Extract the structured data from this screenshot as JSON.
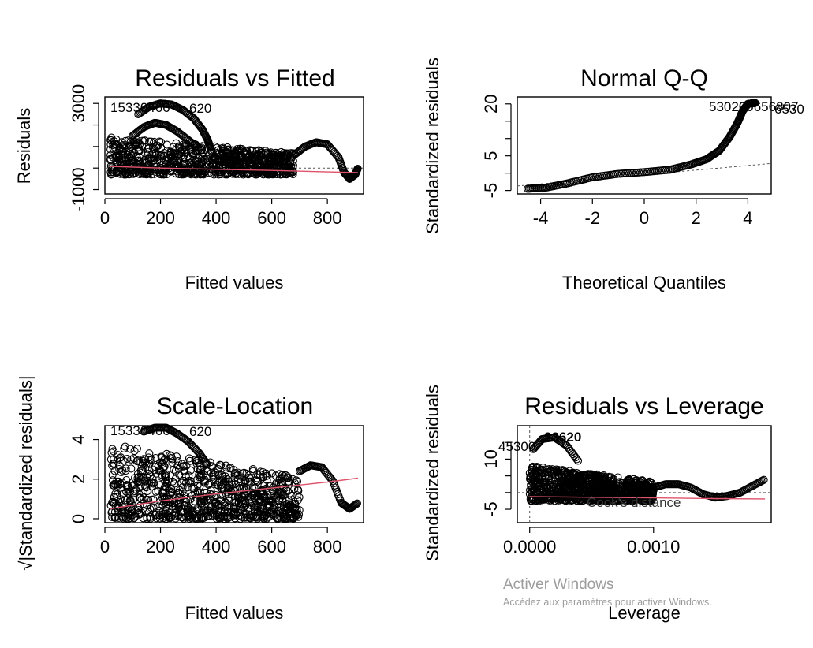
{
  "window": {
    "watermark_title": "Activer Windows",
    "watermark_sub": "Accédez aux paramètres pour activer Windows."
  },
  "colors": {
    "points": "#000000",
    "smooth": "#DF536B",
    "reference": "#777777"
  },
  "chart_data": [
    {
      "type": "scatter",
      "title": "Residuals vs Fitted",
      "xlabel": "Fitted values",
      "ylabel": "Residuals",
      "xlim": [
        0,
        930
      ],
      "ylim": [
        -1200,
        3300
      ],
      "xticks": [
        0,
        200,
        400,
        600,
        800
      ],
      "yticks": [
        -1000,
        0,
        1000,
        2000,
        3000
      ],
      "ytick_labels": [
        "-1000",
        "",
        "",
        "",
        "3000"
      ],
      "reference_line": {
        "y": 0
      },
      "smooth": {
        "x": [
          20,
          200,
          400,
          600,
          800,
          910
        ],
        "y": [
          80,
          0,
          -60,
          -110,
          -180,
          -210
        ]
      },
      "point_labels": [
        "1533",
        "3350",
        "4620"
      ],
      "point_label_text": "15330466",
      "point_label_text2": "620",
      "curves": [
        {
          "x": [
            120,
            160,
            200,
            240,
            280,
            320,
            350,
            370,
            380
          ],
          "y": [
            2500,
            2850,
            3000,
            2950,
            2700,
            2300,
            1800,
            1300,
            900
          ]
        },
        {
          "x": [
            100,
            140,
            180,
            220,
            260,
            300,
            340
          ],
          "y": [
            1500,
            1900,
            2100,
            2000,
            1700,
            1300,
            900
          ]
        },
        {
          "x": [
            680,
            720,
            760,
            800,
            840,
            860,
            880,
            900,
            910
          ],
          "y": [
            600,
            1000,
            1200,
            1100,
            500,
            -200,
            -500,
            -300,
            0
          ]
        }
      ],
      "cloud": {
        "x_range": [
          20,
          680
        ],
        "y_lo": -300,
        "y_hi": 1500
      }
    },
    {
      "type": "scatter",
      "title": "Normal Q-Q",
      "xlabel": "Theoretical Quantiles",
      "ylabel": "Standardized residuals",
      "xlim": [
        -4.9,
        4.9
      ],
      "ylim": [
        -6,
        22
      ],
      "xticks": [
        -4,
        -2,
        0,
        2,
        4
      ],
      "yticks": [
        -5,
        0,
        5,
        10,
        15,
        20
      ],
      "ytick_labels": [
        "-5",
        "",
        "5",
        "",
        "",
        "20"
      ],
      "reference_line": {
        "x": [
          -4.9,
          4.9
        ],
        "y": [
          -3.7,
          2.8
        ]
      },
      "qq": {
        "x": [
          -4.5,
          -3.8,
          -3.0,
          -2.0,
          -1.0,
          0.0,
          1.0,
          1.8,
          2.4,
          2.9,
          3.3,
          3.6,
          3.8,
          4.0,
          4.3
        ],
        "y": [
          -4.5,
          -4.2,
          -3.0,
          -1.2,
          -0.2,
          0.3,
          1.0,
          2.5,
          4.0,
          6.5,
          10.5,
          14.5,
          18.0,
          20.0,
          20.3
        ]
      },
      "point_label_text": "530200656807",
      "point_label_text2": "6530"
    },
    {
      "type": "scatter",
      "title": "Scale-Location",
      "xlabel": "Fitted values",
      "ylabel": "√|Standardized residuals|",
      "xlim": [
        0,
        930
      ],
      "ylim": [
        -0.2,
        4.7
      ],
      "xticks": [
        0,
        200,
        400,
        600,
        800
      ],
      "yticks": [
        0,
        2,
        4
      ],
      "smooth": {
        "x": [
          20,
          200,
          400,
          600,
          800,
          910
        ],
        "y": [
          0.5,
          0.9,
          1.25,
          1.55,
          1.85,
          2.05
        ]
      },
      "point_label_text": "15330466",
      "point_label_text2": "620",
      "curves": [
        {
          "x": [
            140,
            180,
            220,
            260,
            300,
            340,
            370
          ],
          "y": [
            4.4,
            4.6,
            4.6,
            4.3,
            3.9,
            3.3,
            2.7
          ]
        },
        {
          "x": [
            700,
            740,
            780,
            820,
            850,
            880,
            910
          ],
          "y": [
            2.4,
            2.7,
            2.6,
            1.9,
            0.8,
            0.5,
            0.8
          ]
        }
      ],
      "cloud": {
        "x_range": [
          20,
          700
        ],
        "y_lo": 0.0,
        "y_hi": 3.8
      }
    },
    {
      "type": "scatter",
      "title": "Residuals vs Leverage",
      "xlabel": "Leverage",
      "ylabel": "Standardized residuals",
      "xlim": [
        -0.0001,
        0.00195
      ],
      "ylim": [
        -9,
        20
      ],
      "xticks": [
        0.0,
        0.001
      ],
      "xtick_labels": [
        "0.0000",
        "0.0010"
      ],
      "yticks": [
        -5,
        0,
        5,
        10,
        15
      ],
      "ytick_labels": [
        "-5",
        "",
        "",
        "10",
        ""
      ],
      "reference_line": {
        "y": 0
      },
      "vertical_reference": {
        "x": 0
      },
      "smooth": {
        "x": [
          0.0,
          0.0005,
          0.001,
          0.0015,
          0.0019
        ],
        "y": [
          -1.2,
          -1.4,
          -1.6,
          -1.8,
          -1.9
        ]
      },
      "legend_text": "Cook's distance",
      "point_label_text": "23620",
      "point_label_text2": "45300",
      "curves": [
        {
          "x": [
            3e-05,
            0.0001,
            0.0002,
            0.0003,
            0.0004
          ],
          "y": [
            13,
            16,
            16.5,
            14,
            9
          ]
        },
        {
          "x": [
            0.0003,
            0.0004,
            0.0005,
            0.0006,
            0.0007
          ],
          "y": [
            3,
            5,
            5.5,
            4,
            1
          ]
        },
        {
          "x": [
            0.001,
            0.0011,
            0.0012,
            0.0013,
            0.0014,
            0.0015,
            0.0016,
            0.0017,
            0.0018,
            0.0019
          ],
          "y": [
            1.5,
            2.5,
            2.5,
            1.5,
            -0.5,
            -1.5,
            -1,
            0,
            2,
            4
          ]
        }
      ],
      "cloud": {
        "x_range": [
          0.0,
          0.001
        ],
        "y_lo": -2.5,
        "y_hi": 8
      }
    }
  ]
}
